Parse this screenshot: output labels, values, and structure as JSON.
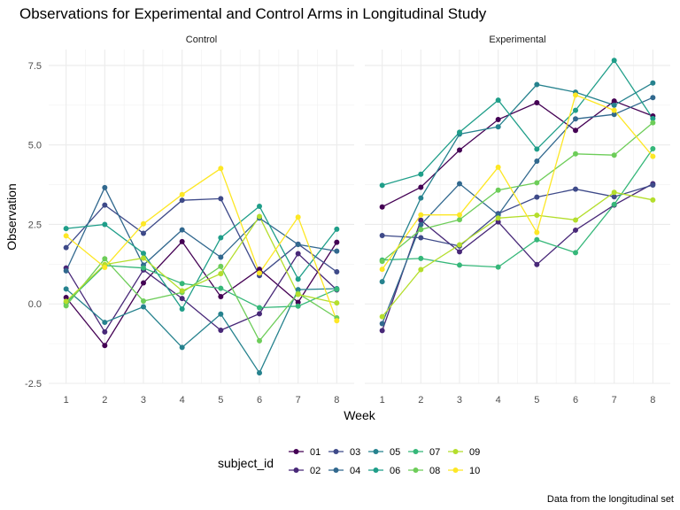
{
  "chart_data": {
    "type": "line",
    "title": "Observations for Experimental and Control Arms in Longitudinal Study",
    "xlabel": "Week",
    "ylabel": "Observation",
    "caption": "Data from the longitudinal set",
    "x": [
      1,
      2,
      3,
      4,
      5,
      6,
      7,
      8
    ],
    "xlim": [
      0.55,
      8.45
    ],
    "ylim": [
      -2.5,
      8.0
    ],
    "y_ticks": [
      "-2.5",
      "0.0",
      "2.5",
      "5.0",
      "7.5"
    ],
    "y_tick_values": [
      -2.5,
      0.0,
      2.5,
      5.0,
      7.5
    ],
    "x_ticks": [
      "1",
      "2",
      "3",
      "4",
      "5",
      "6",
      "7",
      "8"
    ],
    "grid": true,
    "legend": {
      "title": "subject_id",
      "placement": "bottom",
      "entries": [
        {
          "label": "01",
          "color": "#440154"
        },
        {
          "label": "02",
          "color": "#482878"
        },
        {
          "label": "03",
          "color": "#3E4A89"
        },
        {
          "label": "04",
          "color": "#31688E"
        },
        {
          "label": "05",
          "color": "#26828E"
        },
        {
          "label": "06",
          "color": "#1F9E89"
        },
        {
          "label": "07",
          "color": "#35B779"
        },
        {
          "label": "08",
          "color": "#6DCD59"
        },
        {
          "label": "09",
          "color": "#B4DE2C"
        },
        {
          "label": "10",
          "color": "#FDE725"
        }
      ]
    },
    "panels": [
      {
        "name": "Control",
        "series": [
          {
            "name": "01",
            "values": [
              0.2,
              -1.31,
              0.66,
              1.96,
              0.23,
              1.09,
              0.05,
              1.94
            ]
          },
          {
            "name": "02",
            "values": [
              1.13,
              -0.88,
              1.07,
              0.17,
              -0.83,
              -0.31,
              1.58,
              0.44
            ]
          },
          {
            "name": "03",
            "values": [
              1.77,
              3.11,
              2.22,
              3.26,
              3.31,
              0.89,
              1.88,
              1.01
            ]
          },
          {
            "name": "04",
            "values": [
              1.04,
              3.66,
              1.22,
              2.33,
              1.47,
              2.7,
              1.87,
              1.66
            ]
          },
          {
            "name": "05",
            "values": [
              0.47,
              -0.58,
              -0.09,
              -1.37,
              -0.32,
              -2.17,
              0.45,
              0.48
            ]
          },
          {
            "name": "06",
            "values": [
              2.37,
              2.5,
              1.59,
              -0.16,
              2.08,
              3.07,
              0.78,
              2.35
            ]
          },
          {
            "name": "07",
            "values": [
              0.03,
              1.21,
              1.13,
              0.64,
              0.49,
              -0.12,
              -0.07,
              0.46
            ]
          },
          {
            "name": "08",
            "values": [
              -0.06,
              1.42,
              0.09,
              0.36,
              1.18,
              -1.16,
              0.33,
              -0.44
            ]
          },
          {
            "name": "09",
            "values": [
              0.08,
              1.24,
              1.44,
              0.41,
              0.95,
              2.75,
              0.3,
              0.03
            ]
          },
          {
            "name": "10",
            "values": [
              2.14,
              1.15,
              2.52,
              3.44,
              4.26,
              0.97,
              2.73,
              -0.53
            ]
          }
        ]
      },
      {
        "name": "Experimental",
        "series": [
          {
            "name": "01",
            "values": [
              3.05,
              3.67,
              4.84,
              5.8,
              6.33,
              5.46,
              6.38,
              5.91
            ]
          },
          {
            "name": "02",
            "values": [
              -0.84,
              2.63,
              1.64,
              2.58,
              1.24,
              2.32,
              3.11,
              3.78
            ]
          },
          {
            "name": "03",
            "values": [
              2.15,
              2.08,
              1.82,
              2.84,
              3.36,
              3.61,
              3.37,
              3.74
            ]
          },
          {
            "name": "04",
            "values": [
              -0.62,
              2.49,
              3.78,
              2.8,
              4.49,
              5.82,
              5.96,
              6.49
            ]
          },
          {
            "name": "05",
            "values": [
              0.7,
              3.33,
              5.34,
              5.57,
              6.9,
              6.66,
              6.25,
              6.95
            ]
          },
          {
            "name": "06",
            "values": [
              3.73,
              4.08,
              5.4,
              6.41,
              4.87,
              6.09,
              7.66,
              5.83
            ]
          },
          {
            "name": "07",
            "values": [
              1.38,
              1.43,
              1.22,
              1.16,
              2.02,
              1.61,
              3.13,
              4.88
            ]
          },
          {
            "name": "08",
            "values": [
              1.34,
              2.34,
              2.65,
              3.58,
              3.81,
              4.72,
              4.68,
              5.7
            ]
          },
          {
            "name": "09",
            "values": [
              -0.4,
              1.08,
              1.86,
              2.7,
              2.79,
              2.64,
              3.51,
              3.27
            ]
          },
          {
            "name": "10",
            "values": [
              1.09,
              2.8,
              2.8,
              4.3,
              2.25,
              6.57,
              6.09,
              4.64
            ]
          }
        ]
      }
    ]
  }
}
